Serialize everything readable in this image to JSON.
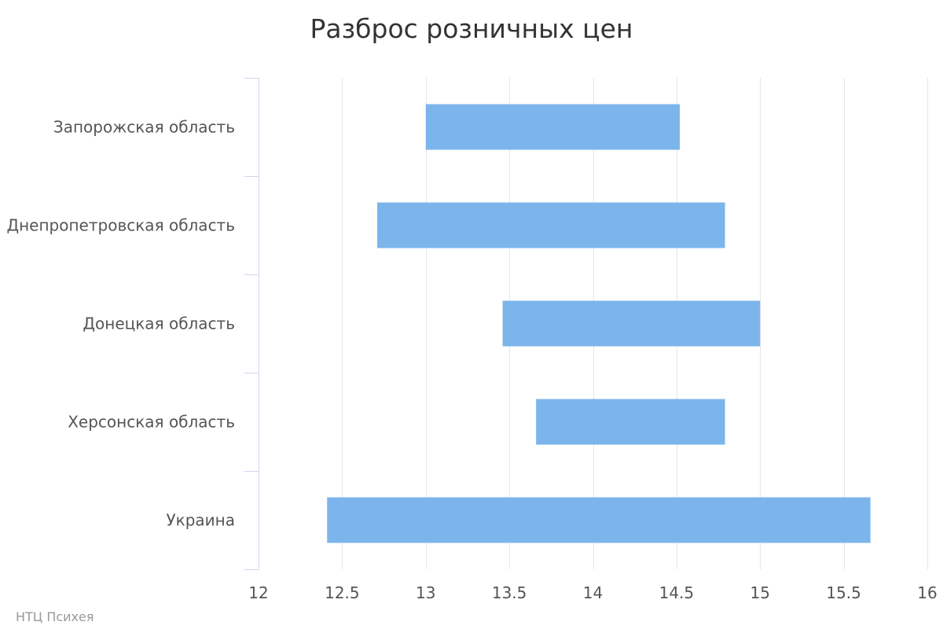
{
  "credit": "НТЦ Психея",
  "colors": {
    "bar": "#7cb5ec",
    "grid": "#e6e6e6",
    "axis": "#ccd6eb",
    "text": "#555555",
    "title": "#333333"
  },
  "chart_data": {
    "type": "bar",
    "orientation": "horizontal",
    "subtype": "floating-range",
    "title": "Разброс розничных цен",
    "xlabel": "",
    "ylabel": "",
    "categories": [
      "Запорожская область",
      "Днепропетровская область",
      "Донецкая область",
      "Херсонская область",
      "Украина"
    ],
    "ranges": [
      [
        13.0,
        14.52
      ],
      [
        12.71,
        14.79
      ],
      [
        13.46,
        15.0
      ],
      [
        13.66,
        14.79
      ],
      [
        12.41,
        15.66
      ]
    ],
    "xlim": [
      12,
      16
    ],
    "xticks": [
      "12",
      "12.5",
      "13",
      "13.5",
      "14",
      "14.5",
      "15",
      "15.5",
      "16"
    ],
    "grid": true,
    "legend": "none"
  }
}
